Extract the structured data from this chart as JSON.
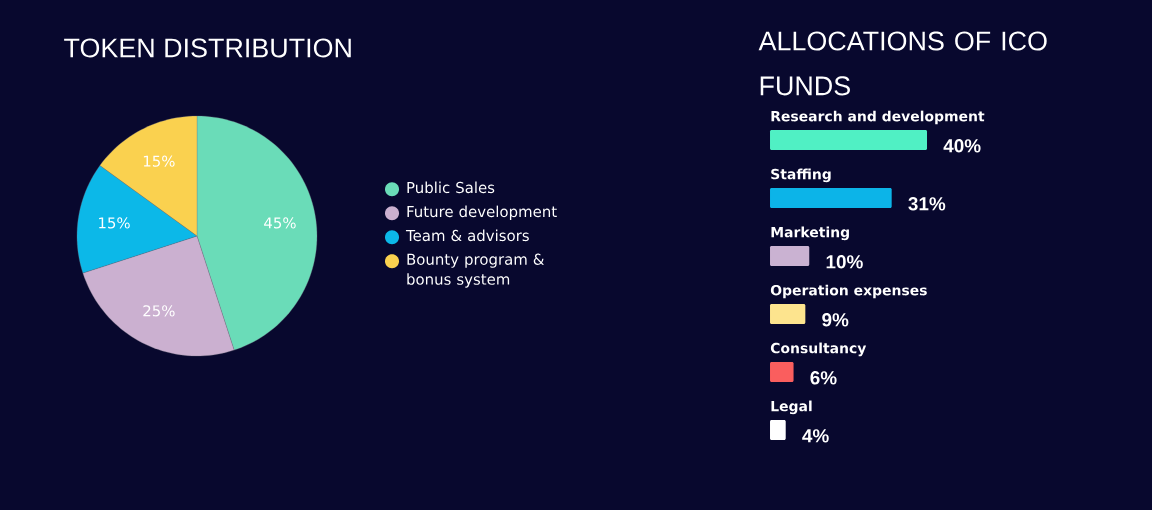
{
  "chart_data": [
    {
      "type": "pie",
      "title": "TOKEN DISTRIBUTION",
      "categories": [
        "Public Sales",
        "Future development",
        "Team & advisors",
        "Bounty program & bonus system"
      ],
      "values": [
        45,
        25,
        15,
        15
      ],
      "colors": [
        "#6adcb8",
        "#cbb0d0",
        "#0cb8e8",
        "#fad14f"
      ],
      "value_labels": [
        "45%",
        "25%",
        "15%",
        "15%"
      ],
      "legend": "right"
    },
    {
      "type": "bar",
      "orientation": "horizontal",
      "title": "ALLOCATIONS OF ICO FUNDS",
      "categories": [
        "Research and development",
        "Staffing",
        "Marketing",
        "Operation expenses",
        "Consultancy",
        "Legal"
      ],
      "values": [
        40,
        31,
        10,
        9,
        6,
        4
      ],
      "colors": [
        "#50f0c4",
        "#0cb4e8",
        "#cab2d2",
        "#fde48e",
        "#fa5e5e",
        "#ffffff"
      ],
      "value_labels": [
        "40%",
        "31%",
        "10%",
        "9%",
        "6%",
        "4%"
      ]
    }
  ]
}
